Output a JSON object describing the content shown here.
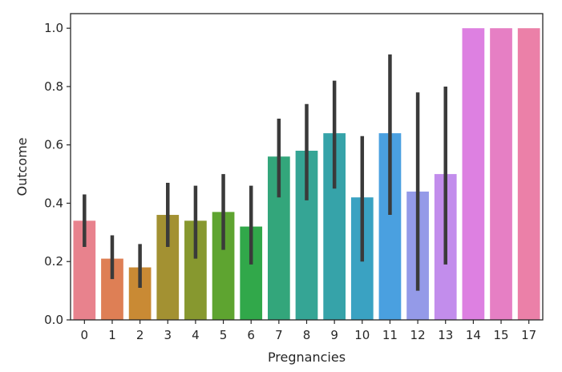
{
  "chart_data": {
    "type": "bar",
    "title": "",
    "xlabel": "Pregnancies",
    "ylabel": "Outcome",
    "ylim": [
      0,
      1.05
    ],
    "yticks": [
      "0.0",
      "0.2",
      "0.4",
      "0.6",
      "0.8",
      "1.0"
    ],
    "grid": false,
    "categories": [
      "0",
      "1",
      "2",
      "3",
      "4",
      "5",
      "6",
      "7",
      "8",
      "9",
      "10",
      "11",
      "12",
      "13",
      "14",
      "15",
      "17"
    ],
    "values": [
      0.34,
      0.21,
      0.18,
      0.36,
      0.34,
      0.37,
      0.32,
      0.56,
      0.58,
      0.64,
      0.42,
      0.64,
      0.44,
      0.5,
      1.0,
      1.0,
      1.0
    ],
    "ci_low": [
      0.25,
      0.14,
      0.11,
      0.25,
      0.21,
      0.24,
      0.19,
      0.42,
      0.41,
      0.45,
      0.2,
      0.36,
      0.1,
      0.19,
      1.0,
      1.0,
      1.0
    ],
    "ci_high": [
      0.43,
      0.29,
      0.26,
      0.47,
      0.46,
      0.5,
      0.46,
      0.69,
      0.74,
      0.82,
      0.63,
      0.91,
      0.78,
      0.8,
      1.0,
      1.0,
      1.0
    ],
    "colors": [
      "#e8828d",
      "#de7f55",
      "#c98a34",
      "#a39132",
      "#87982f",
      "#5ea430",
      "#31a84a",
      "#33a67b",
      "#35a595",
      "#36a3a9",
      "#3aa2c2",
      "#4aa0e0",
      "#949ae8",
      "#c28dec",
      "#dd80e1",
      "#e67fc4",
      "#eb80a8"
    ],
    "error_color": "#3a3a3a"
  }
}
